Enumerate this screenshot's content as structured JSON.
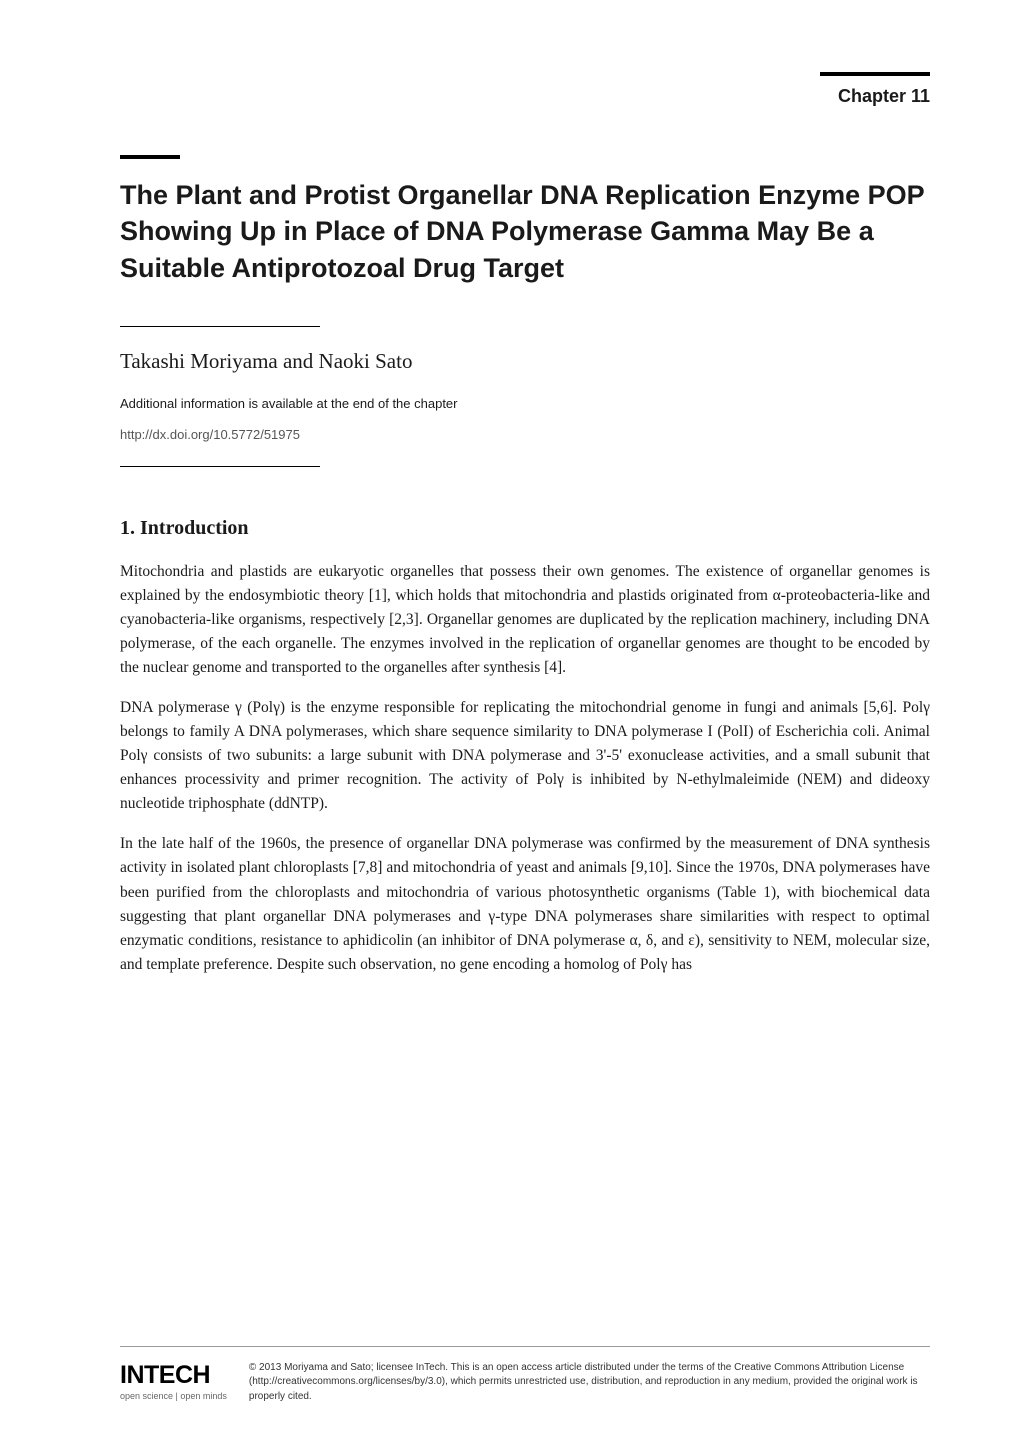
{
  "chapter_label": "Chapter 11",
  "title": "The Plant and Protist Organellar DNA Replication Enzyme POP Showing Up in Place of DNA Polymerase Gamma May Be a Suitable Antiprotozoal Drug Target",
  "authors": "Takashi Moriyama and Naoki Sato",
  "additional_info": "Additional information is available at the end of the chapter",
  "doi": "http://dx.doi.org/10.5772/51975",
  "section_heading": "1. Introduction",
  "paragraphs": [
    "Mitochondria and plastids are eukaryotic organelles that possess their own genomes. The existence of organellar genomes is explained by the endosymbiotic theory [1], which holds that mitochondria and plastids originated from α-proteobacteria-like and cyanobacteria-like organisms, respectively [2,3]. Organellar genomes are duplicated by the replication machinery, including DNA polymerase, of the each organelle. The enzymes involved in the replication of organellar genomes are thought to be encoded by the nuclear genome and transported to the organelles after synthesis [4].",
    "DNA polymerase γ (Polγ) is the enzyme responsible for replicating the mitochondrial genome in fungi and animals [5,6]. Polγ belongs to family A DNA polymerases, which share sequence similarity to DNA polymerase I (PolI) of Escherichia coli. Animal Polγ consists of two subunits: a large subunit with DNA polymerase and 3'-5' exonuclease activities, and a small subunit that enhances processivity and primer recognition. The activity of Polγ is inhibited by N-ethylmaleimide (NEM) and dideoxy nucleotide triphosphate (ddNTP).",
    "In the late half of the 1960s, the presence of organellar DNA polymerase was confirmed by the measurement of DNA synthesis activity in isolated plant chloroplasts [7,8] and mitochondria of yeast and animals [9,10]. Since the 1970s, DNA polymerases have been purified from the chloroplasts and mitochondria of various photosynthetic organisms (Table 1), with biochemical data suggesting that plant organellar DNA polymerases and γ-type DNA polymerases share similarities with respect to optimal enzymatic conditions, resistance to aphidicolin (an inhibitor of DNA polymerase α, δ, and ε), sensitivity to NEM, molecular size, and template preference. Despite such observation, no gene encoding a homolog of Polγ has"
  ],
  "logo_text": "INTECH",
  "logo_sub": "open science | open minds",
  "copyright": "© 2013 Moriyama and Sato; licensee InTech. This is an open access article distributed under the terms of the Creative Commons Attribution License (http://creativecommons.org/licenses/by/3.0), which permits unrestricted use, distribution, and reproduction in any medium, provided the original work is properly cited."
}
